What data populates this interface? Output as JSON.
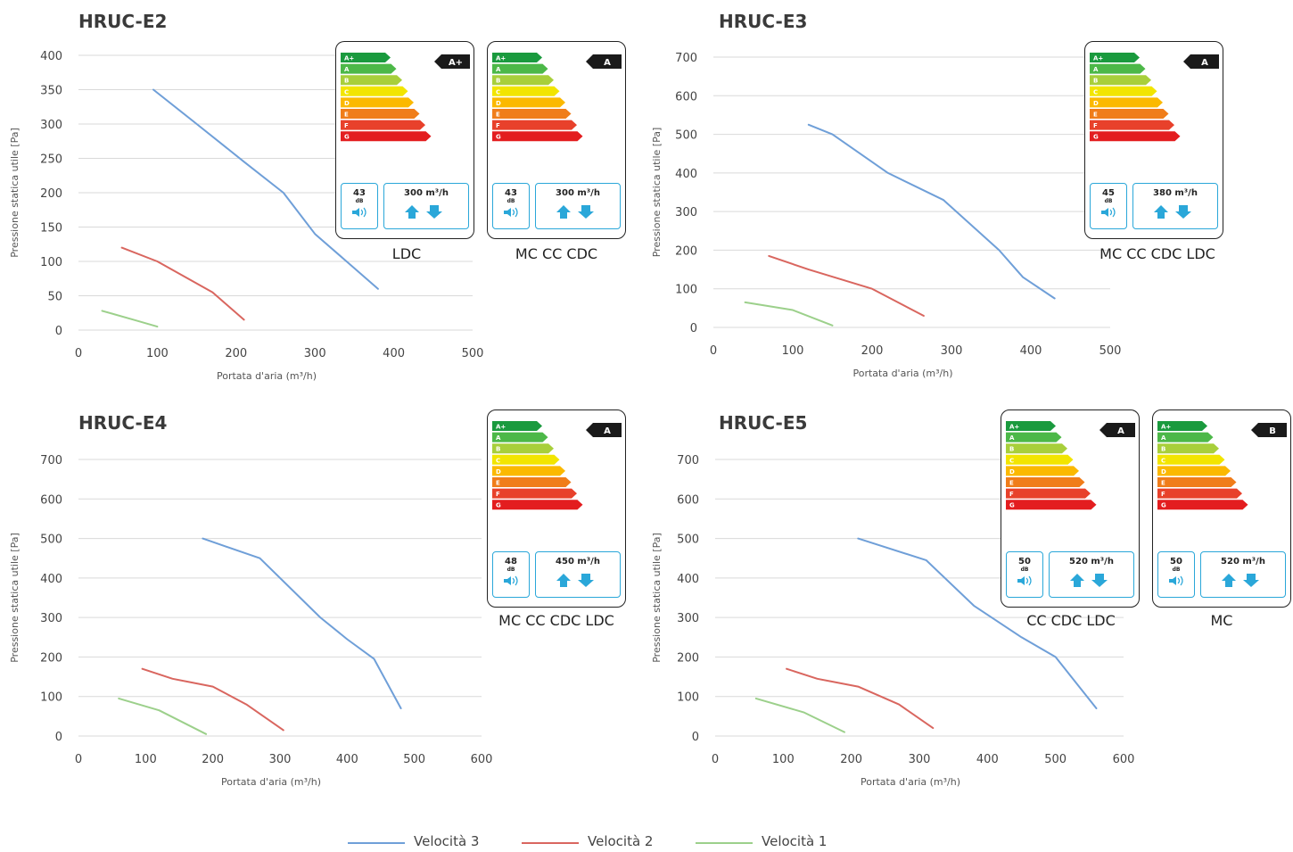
{
  "panels": [
    {
      "title": "HRUC-E2",
      "xlabel": "Portata d'aria (m³/h)",
      "ylabel": "Pressione statica utile [Pa]",
      "labels": [
        {
          "rating": "A+",
          "db": "43",
          "db_unit": "dB",
          "flow": "300 m³/h",
          "caption": "LDC"
        },
        {
          "rating": "A",
          "db": "43",
          "db_unit": "dB",
          "flow": "300 m³/h",
          "caption": "MC CC CDC"
        }
      ]
    },
    {
      "title": "HRUC-E3",
      "xlabel": "Portata d'aria (m³/h)",
      "ylabel": "Pressione statica utile [Pa]",
      "labels": [
        {
          "rating": "A",
          "db": "45",
          "db_unit": "dB",
          "flow": "380 m³/h",
          "caption": "MC CC CDC LDC"
        }
      ]
    },
    {
      "title": "HRUC-E4",
      "xlabel": "Portata d'aria (m³/h)",
      "ylabel": "Pressione statica utile [Pa]",
      "labels": [
        {
          "rating": "A",
          "db": "48",
          "db_unit": "dB",
          "flow": "450 m³/h",
          "caption": "MC CC CDC LDC"
        }
      ]
    },
    {
      "title": "HRUC-E5",
      "xlabel": "Portata d'aria (m³/h)",
      "ylabel": "Pressione statica utile [Pa]",
      "labels": [
        {
          "rating": "A",
          "db": "50",
          "db_unit": "dB",
          "flow": "520 m³/h",
          "caption": "CC CDC LDC"
        },
        {
          "rating": "B",
          "db": "50",
          "db_unit": "dB",
          "flow": "520 m³/h",
          "caption": "MC"
        }
      ]
    }
  ],
  "energy_classes": [
    "A+",
    "A",
    "B",
    "C",
    "D",
    "E",
    "F",
    "G"
  ],
  "energy_colors": [
    "#1a9a3e",
    "#4cb848",
    "#a8cf3b",
    "#f2e500",
    "#fbb900",
    "#f07d1a",
    "#e8412b",
    "#e31d1f"
  ],
  "series_colors": {
    "Velocità 3": "#6f9fd8",
    "Velocità 2": "#d9665f",
    "Velocità 1": "#9cd08b"
  },
  "legend": [
    "Velocità 3",
    "Velocità 2",
    "Velocità 1"
  ],
  "chart_data": [
    {
      "type": "line",
      "title": "HRUC-E2",
      "xlabel": "Portata d'aria (m³/h)",
      "ylabel": "Pressione statica utile [Pa]",
      "xlim": [
        0,
        500
      ],
      "ylim": [
        0,
        400
      ],
      "xticks": [
        0,
        100,
        200,
        300,
        400,
        500
      ],
      "yticks": [
        0,
        50,
        100,
        150,
        200,
        250,
        300,
        350,
        400
      ],
      "grid": true,
      "series": [
        {
          "name": "Velocità 3",
          "x": [
            95,
            150,
            210,
            260,
            300,
            340,
            380
          ],
          "y": [
            350,
            300,
            245,
            200,
            140,
            100,
            60
          ]
        },
        {
          "name": "Velocità 2",
          "x": [
            55,
            100,
            170,
            210
          ],
          "y": [
            120,
            100,
            55,
            15
          ]
        },
        {
          "name": "Velocità 1",
          "x": [
            30,
            70,
            100
          ],
          "y": [
            28,
            15,
            5
          ]
        }
      ]
    },
    {
      "type": "line",
      "title": "HRUC-E3",
      "xlabel": "Portata d'aria (m³/h)",
      "ylabel": "Pressione statica utile [Pa]",
      "xlim": [
        0,
        500
      ],
      "ylim": [
        0,
        700
      ],
      "xticks": [
        0,
        100,
        200,
        300,
        400,
        500
      ],
      "yticks": [
        0,
        100,
        200,
        300,
        400,
        500,
        600,
        700
      ],
      "grid": true,
      "series": [
        {
          "name": "Velocità 3",
          "x": [
            120,
            150,
            220,
            290,
            360,
            390,
            430
          ],
          "y": [
            525,
            500,
            400,
            330,
            200,
            130,
            75
          ]
        },
        {
          "name": "Velocità 2",
          "x": [
            70,
            120,
            200,
            265
          ],
          "y": [
            185,
            150,
            100,
            30
          ]
        },
        {
          "name": "Velocità 1",
          "x": [
            40,
            100,
            150
          ],
          "y": [
            65,
            45,
            5
          ]
        }
      ]
    },
    {
      "type": "line",
      "title": "HRUC-E4",
      "xlabel": "Portata d'aria (m³/h)",
      "ylabel": "Pressione statica utile [Pa]",
      "xlim": [
        0,
        600
      ],
      "ylim": [
        0,
        700
      ],
      "xticks": [
        0,
        100,
        200,
        300,
        400,
        500,
        600
      ],
      "yticks": [
        0,
        100,
        200,
        300,
        400,
        500,
        600,
        700
      ],
      "grid": true,
      "series": [
        {
          "name": "Velocità 3",
          "x": [
            185,
            270,
            360,
            400,
            440,
            480
          ],
          "y": [
            500,
            450,
            300,
            245,
            195,
            70
          ]
        },
        {
          "name": "Velocità 2",
          "x": [
            95,
            140,
            200,
            250,
            305
          ],
          "y": [
            170,
            145,
            125,
            80,
            15
          ]
        },
        {
          "name": "Velocità 1",
          "x": [
            60,
            120,
            190
          ],
          "y": [
            95,
            65,
            5
          ]
        }
      ]
    },
    {
      "type": "line",
      "title": "HRUC-E5",
      "xlabel": "Portata d'aria (m³/h)",
      "ylabel": "Pressione statica utile [Pa]",
      "xlim": [
        0,
        600
      ],
      "ylim": [
        0,
        700
      ],
      "xticks": [
        0,
        100,
        200,
        300,
        400,
        500,
        600
      ],
      "yticks": [
        0,
        100,
        200,
        300,
        400,
        500,
        600,
        700
      ],
      "grid": true,
      "series": [
        {
          "name": "Velocità 3",
          "x": [
            210,
            310,
            380,
            450,
            500,
            560
          ],
          "y": [
            500,
            445,
            330,
            250,
            200,
            70
          ]
        },
        {
          "name": "Velocità 2",
          "x": [
            105,
            150,
            210,
            270,
            320
          ],
          "y": [
            170,
            145,
            125,
            80,
            20
          ]
        },
        {
          "name": "Velocità 1",
          "x": [
            60,
            130,
            190
          ],
          "y": [
            95,
            60,
            10
          ]
        }
      ]
    }
  ]
}
